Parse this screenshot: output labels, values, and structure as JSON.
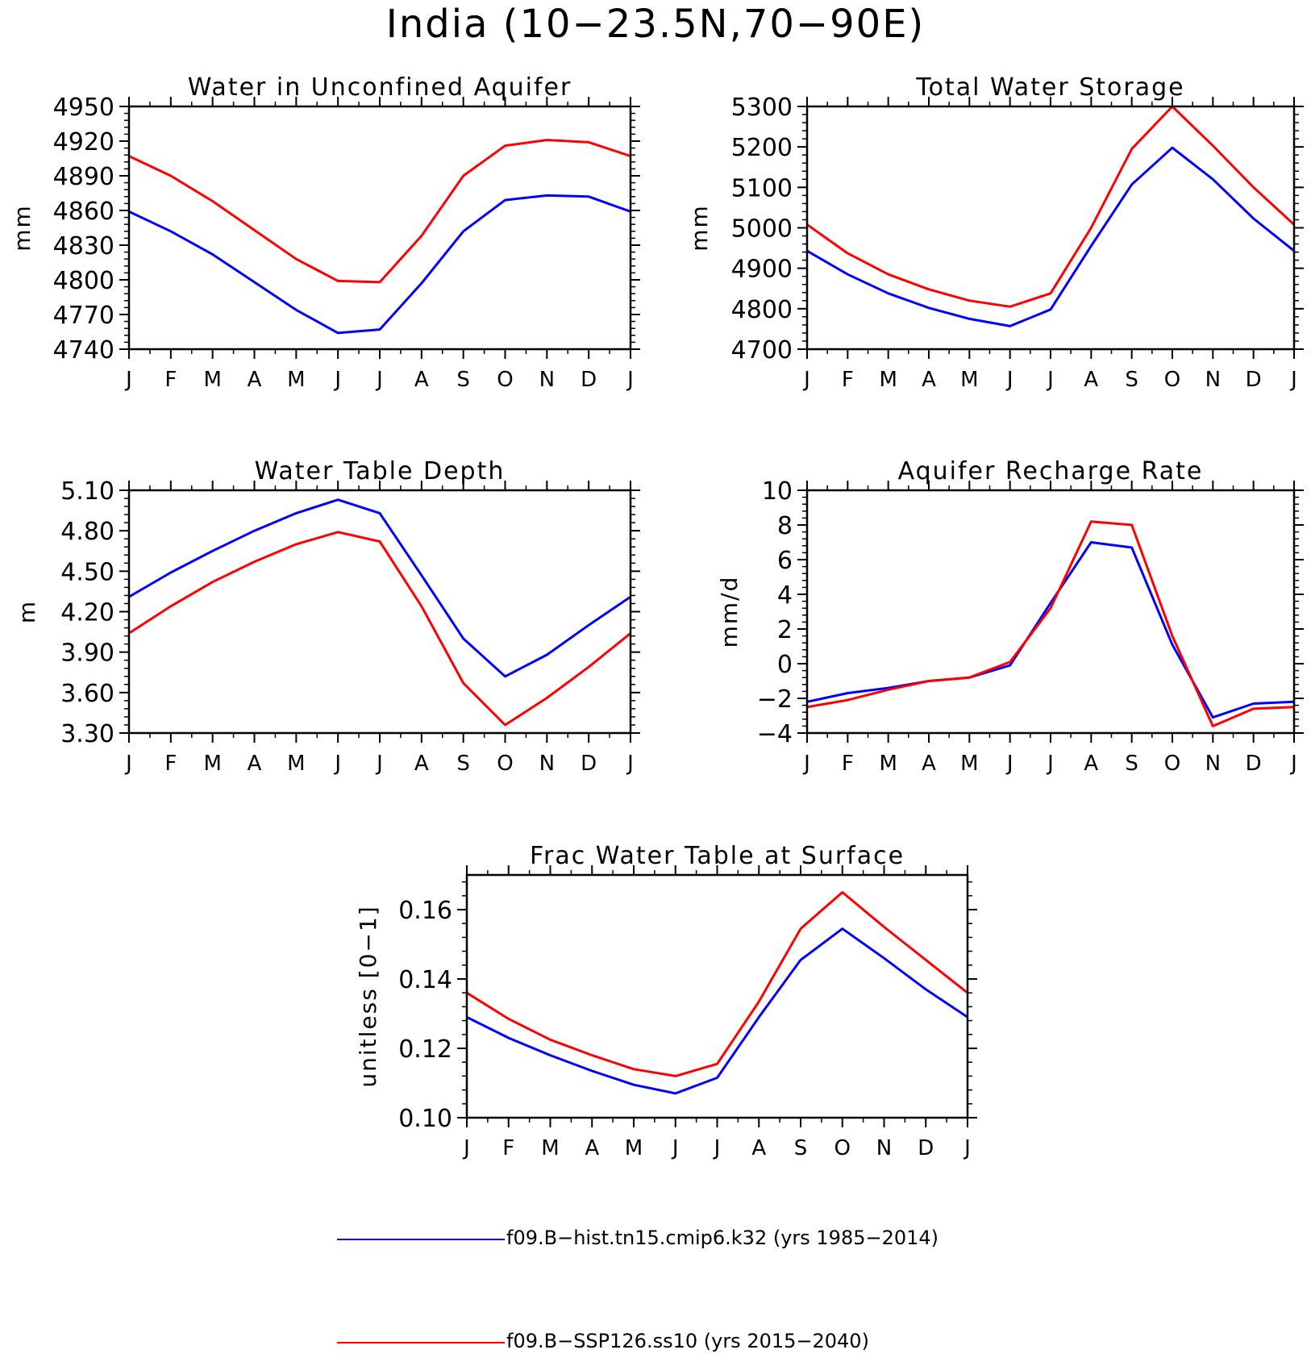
{
  "figure": {
    "title": "India (10−23.5N,70−90E)"
  },
  "legend": [
    {
      "label": "f09.B−hist.tn15.cmip6.k32 (yrs 1985−2014)",
      "color": "#0000ff"
    },
    {
      "label": "f09.B−SSP126.ss10 (yrs 2015−2040)",
      "color": "#ff0000"
    }
  ],
  "chart_data": [
    {
      "type": "line",
      "title": "Water in Unconfined Aquifer",
      "ylabel": "mm",
      "xlabel": "",
      "x": [
        "J",
        "F",
        "M",
        "A",
        "M",
        "J",
        "J",
        "A",
        "S",
        "O",
        "N",
        "D",
        "J"
      ],
      "ylim": [
        4740,
        4950
      ],
      "yticks": [
        4740,
        4770,
        4800,
        4830,
        4860,
        4890,
        4920,
        4950
      ],
      "ytick_labels": [
        "4740",
        "4770",
        "4800",
        "4830",
        "4860",
        "4890",
        "4920",
        "4950"
      ],
      "grid": false,
      "series": [
        {
          "color": "#0000ff",
          "values": [
            4859,
            4842,
            4822,
            4798,
            4774,
            4754,
            4757,
            4797,
            4842,
            4869,
            4873,
            4872,
            4859
          ]
        },
        {
          "color": "#ff0000",
          "values": [
            4907,
            4890,
            4868,
            4843,
            4818,
            4799,
            4798,
            4838,
            4890,
            4916,
            4921,
            4919,
            4907
          ]
        }
      ]
    },
    {
      "type": "line",
      "title": "Total Water Storage",
      "ylabel": "mm",
      "xlabel": "",
      "x": [
        "J",
        "F",
        "M",
        "A",
        "M",
        "J",
        "J",
        "A",
        "S",
        "O",
        "N",
        "D",
        "J"
      ],
      "ylim": [
        4700,
        5300
      ],
      "yticks": [
        4700,
        4800,
        4900,
        5000,
        5100,
        5200,
        5300
      ],
      "ytick_labels": [
        "4700",
        "4800",
        "4900",
        "5000",
        "5100",
        "5200",
        "5300"
      ],
      "grid": false,
      "series": [
        {
          "color": "#0000ff",
          "values": [
            4943,
            4885,
            4838,
            4802,
            4775,
            4757,
            4798,
            4955,
            5107,
            5198,
            5120,
            5023,
            4943
          ]
        },
        {
          "color": "#ff0000",
          "values": [
            5008,
            4937,
            4885,
            4848,
            4820,
            4805,
            4838,
            5000,
            5195,
            5300,
            5203,
            5100,
            5008
          ]
        }
      ]
    },
    {
      "type": "line",
      "title": "Water Table Depth",
      "ylabel": "m",
      "xlabel": "",
      "x": [
        "J",
        "F",
        "M",
        "A",
        "M",
        "J",
        "J",
        "A",
        "S",
        "O",
        "N",
        "D",
        "J"
      ],
      "ylim": [
        3.3,
        5.1
      ],
      "yticks": [
        3.3,
        3.6,
        3.9,
        4.2,
        4.5,
        4.8,
        5.1
      ],
      "ytick_labels": [
        "3.30",
        "3.60",
        "3.90",
        "4.20",
        "4.50",
        "4.80",
        "5.10"
      ],
      "grid": false,
      "series": [
        {
          "color": "#0000ff",
          "values": [
            4.31,
            4.49,
            4.65,
            4.8,
            4.93,
            5.03,
            4.93,
            4.47,
            4.0,
            3.72,
            3.88,
            4.1,
            4.31
          ]
        },
        {
          "color": "#ff0000",
          "values": [
            4.04,
            4.24,
            4.42,
            4.57,
            4.7,
            4.79,
            4.72,
            4.24,
            3.67,
            3.36,
            3.56,
            3.79,
            4.04
          ]
        }
      ]
    },
    {
      "type": "line",
      "title": "Aquifer Recharge Rate",
      "ylabel": "mm/d",
      "xlabel": "",
      "x": [
        "J",
        "F",
        "M",
        "A",
        "M",
        "J",
        "J",
        "A",
        "S",
        "O",
        "N",
        "D",
        "J"
      ],
      "ylim": [
        -4,
        10
      ],
      "yticks": [
        -4,
        -2,
        0,
        2,
        4,
        6,
        8,
        10
      ],
      "ytick_labels": [
        "−4",
        "−2",
        "0",
        "2",
        "4",
        "6",
        "8",
        "10"
      ],
      "grid": false,
      "series": [
        {
          "color": "#0000ff",
          "values": [
            -2.2,
            -1.7,
            -1.4,
            -1.0,
            -0.8,
            -0.1,
            3.5,
            7.0,
            6.7,
            1.1,
            -3.1,
            -2.3,
            -2.2
          ]
        },
        {
          "color": "#ff0000",
          "values": [
            -2.5,
            -2.1,
            -1.5,
            -1.0,
            -0.8,
            0.1,
            3.2,
            8.2,
            8.0,
            1.6,
            -3.6,
            -2.6,
            -2.5
          ]
        }
      ]
    },
    {
      "type": "line",
      "title": "Frac Water Table at Surface",
      "ylabel": "unitless [0−1]",
      "xlabel": "",
      "x": [
        "J",
        "F",
        "M",
        "A",
        "M",
        "J",
        "J",
        "A",
        "S",
        "O",
        "N",
        "D",
        "J"
      ],
      "ylim": [
        0.1,
        0.17
      ],
      "yticks": [
        0.1,
        0.12,
        0.14,
        0.16
      ],
      "ytick_labels": [
        "0.10",
        "0.12",
        "0.14",
        "0.16"
      ],
      "grid": false,
      "series": [
        {
          "color": "#0000ff",
          "values": [
            0.129,
            0.123,
            0.118,
            0.1135,
            0.1095,
            0.107,
            0.1115,
            0.129,
            0.1455,
            0.1545,
            0.146,
            0.137,
            0.129
          ]
        },
        {
          "color": "#ff0000",
          "values": [
            0.136,
            0.1285,
            0.1225,
            0.118,
            0.114,
            0.112,
            0.1155,
            0.1335,
            0.1545,
            0.165,
            0.155,
            0.1455,
            0.136
          ]
        }
      ]
    }
  ]
}
